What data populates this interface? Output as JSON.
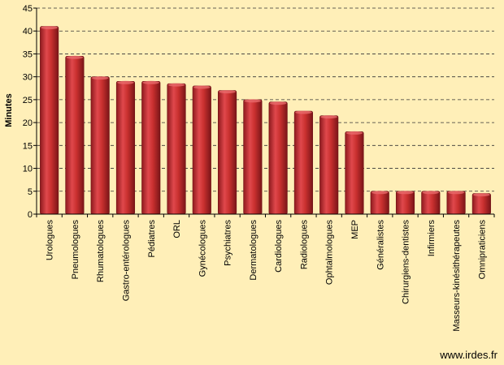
{
  "chart_data": {
    "type": "bar",
    "ylabel": "Minutes",
    "ylim": [
      0,
      45
    ],
    "yticks": [
      0,
      5,
      10,
      15,
      20,
      25,
      30,
      35,
      40,
      45
    ],
    "grid": true,
    "categories": [
      "Urologues",
      "Pneumologues",
      "Rhumatologues",
      "Gastro-entérologues",
      "Pédiatres",
      "ORL",
      "Gynécologues",
      "Psychiatres",
      "Dermatologues",
      "Cardiologues",
      "Radiologues",
      "Ophtalmologues",
      "MEP",
      "Généralistes",
      "Chirurgiens-dentistes",
      "Infirmiers",
      "Masseurs-kinésithérapeutes",
      "Omnipraticiens"
    ],
    "values": [
      41,
      34.5,
      30,
      29,
      29,
      28.5,
      28,
      27,
      25,
      24.5,
      22.5,
      21.5,
      18,
      5,
      5,
      5,
      5,
      4.5
    ],
    "bar_color": "#C0282E"
  },
  "source": "www.irdes.fr"
}
